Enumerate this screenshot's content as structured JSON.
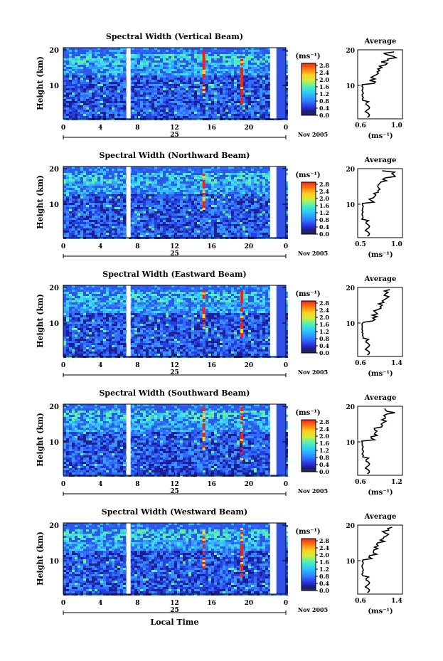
{
  "chart_data": [
    {
      "type": "heatmap",
      "title": "Spectral Width (Vertical Beam)",
      "ylabel": "Height (km)",
      "x_ticks": [
        "0",
        "4",
        "8",
        "12",
        "16",
        "20",
        "0"
      ],
      "date_label": "25",
      "month_label": "Nov 2005",
      "y_ticks": [
        "20",
        "10"
      ],
      "colorbar_unit": "(ms⁻¹)",
      "colorbar_ticks": [
        "0.0",
        "0.4",
        "0.8",
        "1.2",
        "1.6",
        "2.0",
        "2.4",
        "2.8"
      ],
      "average": {
        "title": "Average",
        "xlabel": "(ms⁻¹)",
        "x_ticks": [
          "0.6",
          "1.0"
        ],
        "y_ticks": [
          "20",
          "10"
        ]
      }
    },
    {
      "type": "heatmap",
      "title": "Spectral Width (Northward Beam)",
      "ylabel": "Height (km)",
      "x_ticks": [
        "0",
        "4",
        "8",
        "12",
        "16",
        "20",
        "0"
      ],
      "date_label": "25",
      "month_label": "Nov 2005",
      "y_ticks": [
        "20",
        "10"
      ],
      "colorbar_unit": "(ms⁻¹)",
      "colorbar_ticks": [
        "0.0",
        "0.4",
        "0.8",
        "1.2",
        "1.6",
        "2.0",
        "2.4",
        "2.8"
      ],
      "average": {
        "title": "Average",
        "xlabel": "(ms⁻¹)",
        "x_ticks": [
          "0.5",
          "1.0"
        ],
        "y_ticks": [
          "20",
          "10"
        ]
      }
    },
    {
      "type": "heatmap",
      "title": "Spectral Width (Eastward Beam)",
      "ylabel": "Height (km)",
      "x_ticks": [
        "0",
        "4",
        "8",
        "12",
        "16",
        "20",
        "0"
      ],
      "date_label": "25",
      "month_label": "Nov 2005",
      "y_ticks": [
        "20",
        "10"
      ],
      "colorbar_unit": "(ms⁻¹)",
      "colorbar_ticks": [
        "0.0",
        "0.4",
        "0.8",
        "1.2",
        "1.6",
        "2.0",
        "2.4",
        "2.8"
      ],
      "average": {
        "title": "Average",
        "xlabel": "(ms⁻¹)",
        "x_ticks": [
          "0.6",
          "1.4"
        ],
        "y_ticks": [
          "20",
          "10"
        ]
      }
    },
    {
      "type": "heatmap",
      "title": "Spectral Width (Southward Beam)",
      "ylabel": "Height (km)",
      "x_ticks": [
        "0",
        "4",
        "8",
        "12",
        "16",
        "20",
        "0"
      ],
      "date_label": "25",
      "month_label": "Nov 2005",
      "y_ticks": [
        "20",
        "10"
      ],
      "colorbar_unit": "(ms⁻¹)",
      "colorbar_ticks": [
        "0.0",
        "0.4",
        "0.8",
        "1.2",
        "1.6",
        "2.0",
        "2.4",
        "2.8"
      ],
      "average": {
        "title": "Average",
        "xlabel": "(ms⁻¹)",
        "x_ticks": [
          "0.6",
          "1.2"
        ],
        "y_ticks": [
          "20",
          "10"
        ]
      }
    },
    {
      "type": "heatmap",
      "title": "Spectral Width (Westward Beam)",
      "ylabel": "Height (km)",
      "x_ticks": [
        "0",
        "4",
        "8",
        "12",
        "16",
        "20",
        "0"
      ],
      "date_label": "25",
      "month_label": "Nov 2005",
      "xlabel": "Local Time",
      "y_ticks": [
        "20",
        "10"
      ],
      "colorbar_unit": "(ms⁻¹)",
      "colorbar_ticks": [
        "0.0",
        "0.4",
        "0.8",
        "1.2",
        "1.6",
        "2.0",
        "2.4",
        "2.8"
      ],
      "average": {
        "title": "Average",
        "xlabel": "(ms⁻¹)",
        "x_ticks": [
          "0.6",
          "1.4"
        ],
        "y_ticks": [
          "20",
          "10"
        ]
      }
    }
  ]
}
